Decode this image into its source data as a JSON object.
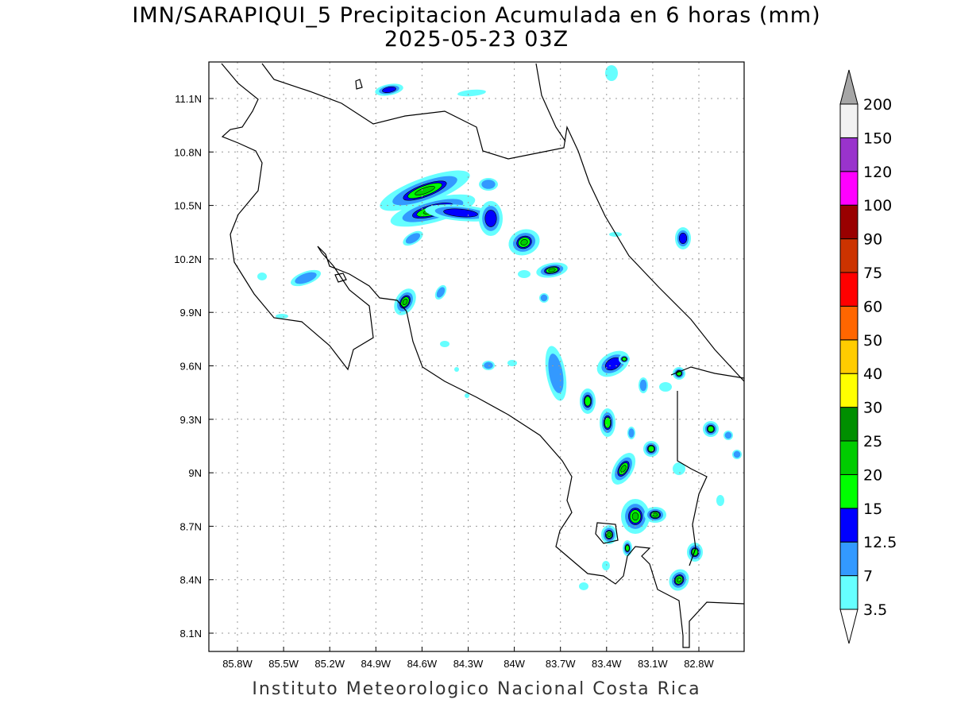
{
  "title": {
    "line1": "IMN/SARAPIQUI_5 Precipitacion Acumulada en 6 horas (mm)",
    "line2": "2025-05-23 03Z"
  },
  "footer": "Instituto Meteorologico Nacional Costa Rica",
  "chart_data": {
    "type": "heatmap",
    "title": "IMN/SARAPIQUI_5 Precipitacion Acumulada en 6 horas (mm)",
    "valid_time": "2025-05-23 03Z",
    "units": "mm",
    "x_ticks": [
      "85.8W",
      "85.5W",
      "85.2W",
      "84.9W",
      "84.6W",
      "84.3W",
      "84W",
      "83.7W",
      "83.4W",
      "83.1W",
      "82.8W"
    ],
    "y_ticks": [
      "11.1N",
      "10.8N",
      "10.5N",
      "10.2N",
      "9.9N",
      "9.6N",
      "9.3N",
      "9N",
      "8.7N",
      "8.4N",
      "8.1N"
    ],
    "lon_range": [
      -85.97,
      -82.54
    ],
    "lat_range": [
      8.0,
      11.3
    ],
    "grid": true,
    "legend_placement": "right",
    "colorbar": {
      "levels": [
        "3.5",
        "7",
        "12.5",
        "15",
        "20",
        "25",
        "30",
        "40",
        "50",
        "60",
        "75",
        "90",
        "100",
        "120",
        "150",
        "200"
      ],
      "colors": [
        "#66ffff",
        "#3399ff",
        "#0000ff",
        "#00ff00",
        "#00cc00",
        "#008f00",
        "#ffff00",
        "#ffcc00",
        "#ff6600",
        "#ff0000",
        "#cc3300",
        "#990000",
        "#ff00ff",
        "#9933cc",
        "#f2f2f2",
        "#a6a6a6"
      ]
    },
    "max_precip_region": "15-25 mm cells near 84.6W 10.5N, 83.9W 10.3N, 84.7W 9.95N, 83.2W 9.0N, 83.2W 8.75N"
  }
}
